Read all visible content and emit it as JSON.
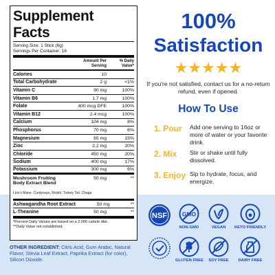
{
  "facts": {
    "title": "Supplement Facts",
    "serving_size": "Serving Size: 1 Stick (6g)",
    "servings_per_container": "Servings Per Container: 16",
    "col_amount": "Amount Per Serving",
    "col_dv": "% Daily Value*",
    "rows": [
      {
        "name": "Calories",
        "amount": "10",
        "dv": ""
      },
      {
        "name": "Total Carbohydrate",
        "amount": "2 g",
        "dv": "<1%"
      },
      {
        "name": "Vitamin C",
        "amount": "90 mg",
        "dv": "100%"
      },
      {
        "name": "Vitamin B6",
        "amount": "1.7 mg",
        "dv": "100%"
      },
      {
        "name": "Folate",
        "amount": "400 mcg DFE",
        "dv": "100%"
      },
      {
        "name": "Vitamin B12",
        "amount": "2.4 mcg",
        "dv": "100%"
      },
      {
        "name": "Calcium",
        "amount": "104 mg",
        "dv": "8%"
      },
      {
        "name": "Phosphorus",
        "amount": "70 mg",
        "dv": "6%"
      },
      {
        "name": "Magnesium",
        "amount": "65 mg",
        "dv": "15%"
      },
      {
        "name": "Zinc",
        "amount": "2.2 mg",
        "dv": "20%"
      },
      {
        "name": "Chloride",
        "amount": "450 mg",
        "dv": "20%"
      },
      {
        "name": "Sodium",
        "amount": "400 mg",
        "dv": "17%"
      },
      {
        "name": "Potassium",
        "amount": "300 mg",
        "dv": "6%"
      }
    ],
    "blend": {
      "name": "Mushroom Fruiting Body Extract Blend",
      "amount": "50 mg",
      "dv": "**",
      "sub": "Lion's Mane, Cordyceps, Reishi, Turkey Tail, Chaga"
    },
    "extra_rows": [
      {
        "name": "Ashwagandha Root Extract",
        "amount": "50 mg",
        "dv": "**"
      },
      {
        "name": "L-Theanine",
        "amount": "50 mg",
        "dv": "**"
      }
    ],
    "note1": "*Percent Daily Values are based on a 2,000 calorie diet.",
    "note2": "**Daily Value not established."
  },
  "other": {
    "label": "OTHER INGREDIENT:",
    "text": "Citric Acid, Gum Arabic, Natural Flavor, Stevia Leaf Extract, Paprika Extract (for color), Silicon Dioxide."
  },
  "satisfaction": {
    "headline1": "100%",
    "headline2": "Satisfaction",
    "stars": "★★★★★",
    "promise": "If you're not satisfied, contact us for a no-return refund, even if opened."
  },
  "how_to": {
    "title": "How To Use",
    "steps": [
      {
        "num": "1. Pour",
        "text": "Add one serving to 16oz or more of water or your favorite drink."
      },
      {
        "num": "2. Mix",
        "text": "Stir or shake until fully dissolved."
      },
      {
        "num": "3. Enjoy",
        "text": "Sip to hydrate, focus, and energize."
      }
    ]
  },
  "badges": [
    {
      "icon": "nsf-icon",
      "label": "",
      "logo_text": "NSF"
    },
    {
      "icon": "gmo-icon",
      "label": "NON-GMO",
      "logo_text": "GMO"
    },
    {
      "icon": "vegan-icon",
      "label": "VEGAN"
    },
    {
      "icon": "keto-icon",
      "label": "KETO FRIENDLY"
    },
    {
      "icon": "third-party-tested-icon",
      "label": ""
    },
    {
      "icon": "gluten-free-icon",
      "label": "GLUTEN FREE"
    },
    {
      "icon": "soy-free-icon",
      "label": "SOY FREE"
    },
    {
      "icon": "dairy-free-icon",
      "label": "DAIRY FREE"
    }
  ],
  "colors": {
    "brand_blue": "#1546b8",
    "star_gold": "#f5b323",
    "panel_bg": "#d6e6f6"
  }
}
